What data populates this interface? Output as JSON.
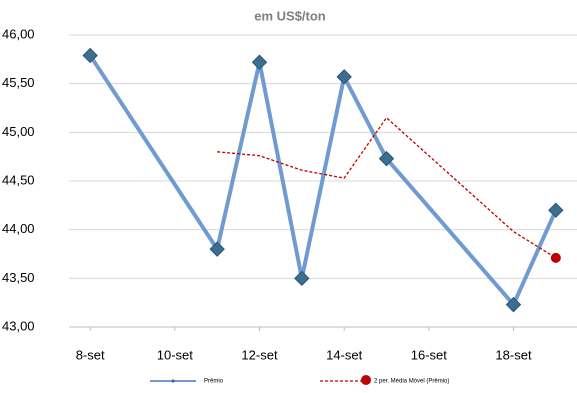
{
  "chart_data": {
    "type": "line",
    "subtitle": "em US$/ton",
    "xlim": [
      7.5,
      19.5
    ],
    "xticks": [
      {
        "value": 8,
        "label": "8-set"
      },
      {
        "value": 10,
        "label": "10-set"
      },
      {
        "value": 12,
        "label": "12-set"
      },
      {
        "value": 14,
        "label": "14-set"
      },
      {
        "value": 16,
        "label": "16-set"
      },
      {
        "value": 18,
        "label": "18-set"
      }
    ],
    "ylim": [
      43,
      46
    ],
    "yticks": [
      {
        "value": 43,
        "label": "43,00"
      },
      {
        "value": 43.5,
        "label": "43,50"
      },
      {
        "value": 44,
        "label": "44,00"
      },
      {
        "value": 44.5,
        "label": "44,50"
      },
      {
        "value": 45,
        "label": "45,00"
      },
      {
        "value": 45.5,
        "label": "45,50"
      },
      {
        "value": 46,
        "label": "46,00"
      }
    ],
    "grid": true,
    "legend": "bottom",
    "series": [
      {
        "name": "Prêmio",
        "color": "#6f9bd1",
        "x": [
          8,
          11,
          12,
          13,
          14,
          15,
          18,
          19
        ],
        "values": [
          45.79,
          43.8,
          45.72,
          43.5,
          45.57,
          44.73,
          43.23,
          44.2
        ]
      },
      {
        "name": "2 per. Média Móvel (Prêmio)",
        "color": "#c00000",
        "x": [
          11,
          12,
          13,
          14,
          15,
          18,
          19
        ],
        "values": [
          44.8,
          44.76,
          44.61,
          44.53,
          45.15,
          43.98,
          43.71
        ]
      }
    ]
  }
}
